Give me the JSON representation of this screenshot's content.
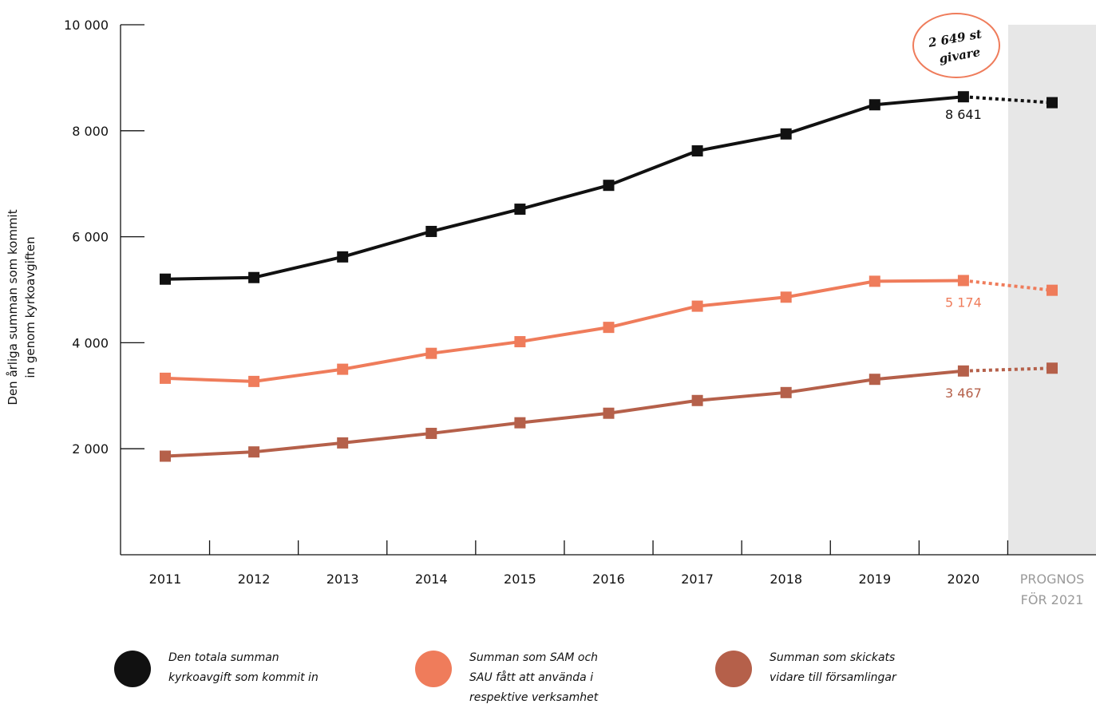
{
  "chart_data": {
    "type": "line",
    "categories": [
      "2011",
      "2012",
      "2013",
      "2014",
      "2015",
      "2016",
      "2017",
      "2018",
      "2019",
      "2020",
      "PROGNOS FÖR 2021"
    ],
    "ylabel": "Den årliga summan som kommit in genom kyrkoavgiften",
    "ylabel_lines": [
      "Den årliga summan som kommit",
      "in genom kyrkoavgiften"
    ],
    "ylim": [
      0,
      10000
    ],
    "yticks": [
      2000,
      4000,
      6000,
      8000,
      10000
    ],
    "ytick_labels": [
      "2 000",
      "4 000",
      "6 000",
      "8 000",
      "10 000"
    ],
    "forecast_label_lines": [
      "PROGNOS",
      "FÖR 2021"
    ],
    "forecast_shaded": true,
    "legend_position": "bottom",
    "series": [
      {
        "name": "Den totala summan kyrkoavgift som kommit in",
        "legend_lines": "Den totala summan\nkyrkoavgift som kommit in",
        "color": "#111111",
        "values": [
          5200,
          5230,
          5620,
          6100,
          6520,
          6970,
          7620,
          7940,
          8490,
          8641,
          8530
        ],
        "end_label": "8 641"
      },
      {
        "name": "Summan som SAM och SAU fått att använda i respektive verksamhet",
        "legend_lines": "Summan som SAM och\nSAU fått att använda i\nrespektive verksamhet",
        "color": "#ef7c5b",
        "values": [
          3330,
          3270,
          3500,
          3800,
          4020,
          4290,
          4690,
          4860,
          5160,
          5174,
          4990
        ],
        "end_label": "5 174"
      },
      {
        "name": "Summan som skickats vidare till församlingar",
        "legend_lines": "Summan som skickats\nvidare till församlingar",
        "color": "#b5604a",
        "values": [
          1860,
          1940,
          2110,
          2290,
          2490,
          2670,
          2910,
          3060,
          3310,
          3467,
          3520
        ],
        "end_label": "3 467"
      }
    ],
    "annotation": {
      "lines": [
        "2 649 st",
        "givare"
      ],
      "color": "#ef7c5b"
    }
  }
}
